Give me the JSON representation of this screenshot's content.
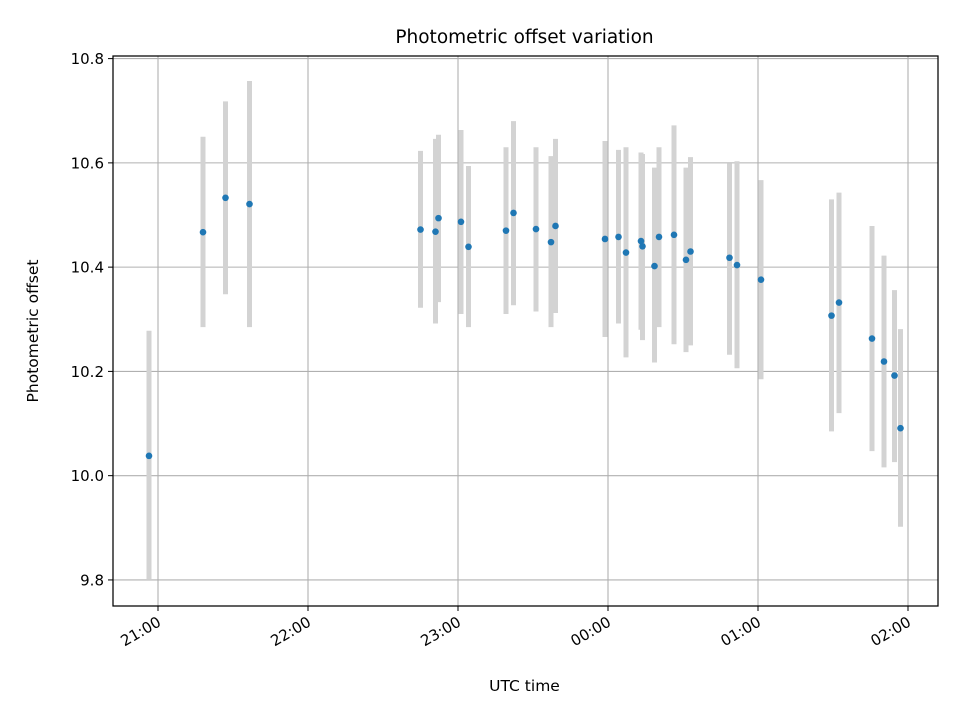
{
  "chart_data": {
    "type": "scatter",
    "title": "Photometric offset variation",
    "xlabel": "UTC time",
    "ylabel": "Photometric offset",
    "x_unit": "hours (UTC, hours past 00:00; negative = previous day)",
    "xlim": [
      -3.3,
      2.2
    ],
    "ylim": [
      9.75,
      10.805
    ],
    "grid": true,
    "x_ticks": [
      {
        "value": -3,
        "label": "21:00"
      },
      {
        "value": -2,
        "label": "22:00"
      },
      {
        "value": -1,
        "label": "23:00"
      },
      {
        "value": 0,
        "label": "00:00"
      },
      {
        "value": 1,
        "label": "01:00"
      },
      {
        "value": 2,
        "label": "02:00"
      }
    ],
    "y_ticks": [
      9.8,
      10.0,
      10.2,
      10.4,
      10.6,
      10.8
    ],
    "y_tick_labels": [
      "9.8",
      "10.0",
      "10.2",
      "10.4",
      "10.6",
      "10.8"
    ],
    "point_color": "#1f77b4",
    "errorbar_color": "#d3d3d3",
    "points": [
      {
        "x": -3.06,
        "y": 10.038,
        "lo": 9.8,
        "hi": 10.278
      },
      {
        "x": -2.7,
        "y": 10.467,
        "lo": 10.285,
        "hi": 10.65
      },
      {
        "x": -2.55,
        "y": 10.533,
        "lo": 10.348,
        "hi": 10.718
      },
      {
        "x": -2.39,
        "y": 10.521,
        "lo": 10.285,
        "hi": 10.757
      },
      {
        "x": -1.25,
        "y": 10.472,
        "lo": 10.322,
        "hi": 10.623
      },
      {
        "x": -1.15,
        "y": 10.468,
        "lo": 10.292,
        "hi": 10.646
      },
      {
        "x": -1.13,
        "y": 10.494,
        "lo": 10.333,
        "hi": 10.654
      },
      {
        "x": -0.98,
        "y": 10.487,
        "lo": 10.31,
        "hi": 10.663
      },
      {
        "x": -0.93,
        "y": 10.439,
        "lo": 10.285,
        "hi": 10.594
      },
      {
        "x": -0.68,
        "y": 10.47,
        "lo": 10.31,
        "hi": 10.63
      },
      {
        "x": -0.63,
        "y": 10.504,
        "lo": 10.327,
        "hi": 10.68
      },
      {
        "x": -0.48,
        "y": 10.473,
        "lo": 10.315,
        "hi": 10.63
      },
      {
        "x": -0.38,
        "y": 10.448,
        "lo": 10.285,
        "hi": 10.613
      },
      {
        "x": -0.35,
        "y": 10.479,
        "lo": 10.312,
        "hi": 10.646
      },
      {
        "x": -0.02,
        "y": 10.454,
        "lo": 10.266,
        "hi": 10.642
      },
      {
        "x": 0.07,
        "y": 10.458,
        "lo": 10.292,
        "hi": 10.625
      },
      {
        "x": 0.12,
        "y": 10.428,
        "lo": 10.227,
        "hi": 10.63
      },
      {
        "x": 0.22,
        "y": 10.45,
        "lo": 10.28,
        "hi": 10.62
      },
      {
        "x": 0.23,
        "y": 10.44,
        "lo": 10.26,
        "hi": 10.617
      },
      {
        "x": 0.31,
        "y": 10.402,
        "lo": 10.217,
        "hi": 10.591
      },
      {
        "x": 0.34,
        "y": 10.458,
        "lo": 10.285,
        "hi": 10.63
      },
      {
        "x": 0.44,
        "y": 10.462,
        "lo": 10.252,
        "hi": 10.672
      },
      {
        "x": 0.52,
        "y": 10.414,
        "lo": 10.237,
        "hi": 10.591
      },
      {
        "x": 0.55,
        "y": 10.43,
        "lo": 10.25,
        "hi": 10.611
      },
      {
        "x": 0.81,
        "y": 10.418,
        "lo": 10.232,
        "hi": 10.599
      },
      {
        "x": 0.86,
        "y": 10.404,
        "lo": 10.206,
        "hi": 10.603
      },
      {
        "x": 1.02,
        "y": 10.376,
        "lo": 10.185,
        "hi": 10.567
      },
      {
        "x": 1.49,
        "y": 10.307,
        "lo": 10.085,
        "hi": 10.53
      },
      {
        "x": 1.54,
        "y": 10.332,
        "lo": 10.12,
        "hi": 10.543
      },
      {
        "x": 1.76,
        "y": 10.263,
        "lo": 10.047,
        "hi": 10.479
      },
      {
        "x": 1.84,
        "y": 10.219,
        "lo": 10.016,
        "hi": 10.422
      },
      {
        "x": 1.91,
        "y": 10.192,
        "lo": 10.026,
        "hi": 10.356
      },
      {
        "x": 1.95,
        "y": 10.091,
        "lo": 9.902,
        "hi": 10.281
      }
    ]
  }
}
